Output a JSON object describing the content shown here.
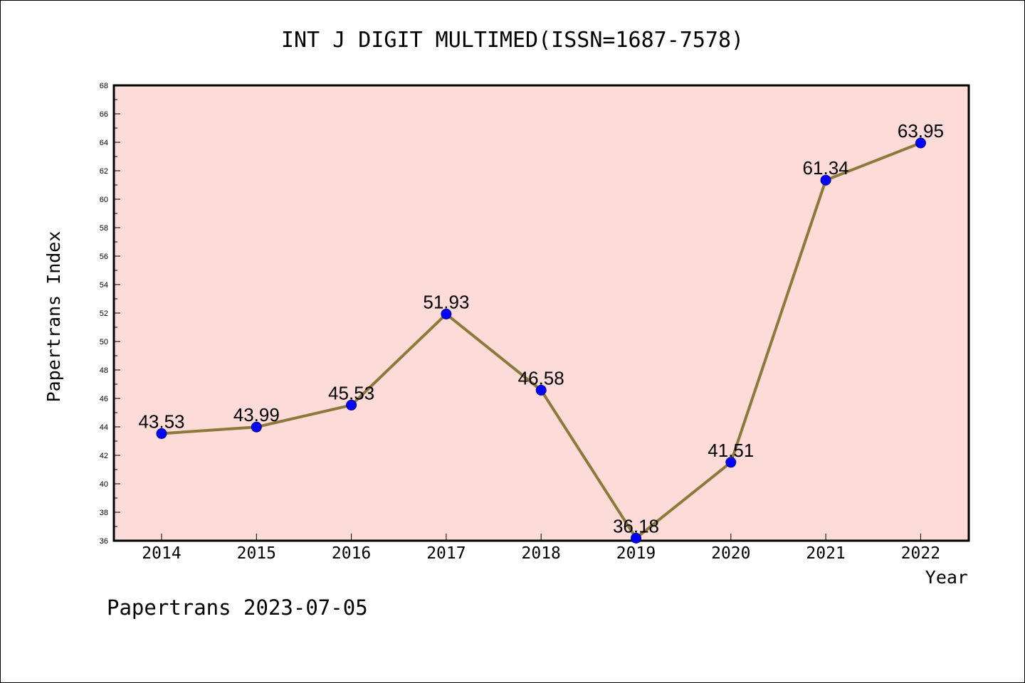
{
  "chart_data": {
    "type": "line",
    "title": "INT J DIGIT MULTIMED(ISSN=1687-7578)",
    "xlabel": "Year",
    "ylabel": "Papertrans Index",
    "categories": [
      "2014",
      "2015",
      "2016",
      "2017",
      "2018",
      "2019",
      "2020",
      "2021",
      "2022"
    ],
    "values": [
      43.53,
      43.99,
      45.53,
      51.93,
      46.58,
      36.18,
      41.51,
      61.34,
      63.95
    ],
    "value_labels": [
      "43.53",
      "43.99",
      "45.53",
      "51.93",
      "46.58",
      "36.18",
      "41.51",
      "61.34",
      "63.95"
    ],
    "ylim": [
      36,
      68
    ],
    "yticks": [
      36,
      38,
      40,
      42,
      44,
      46,
      48,
      50,
      52,
      54,
      56,
      58,
      60,
      62,
      64,
      66,
      68
    ],
    "grid": false,
    "colors": {
      "plot_background": "#fddbd8",
      "line": "#8b7a3a",
      "marker": "#0000ff"
    }
  },
  "footer": "Papertrans 2023-07-05"
}
